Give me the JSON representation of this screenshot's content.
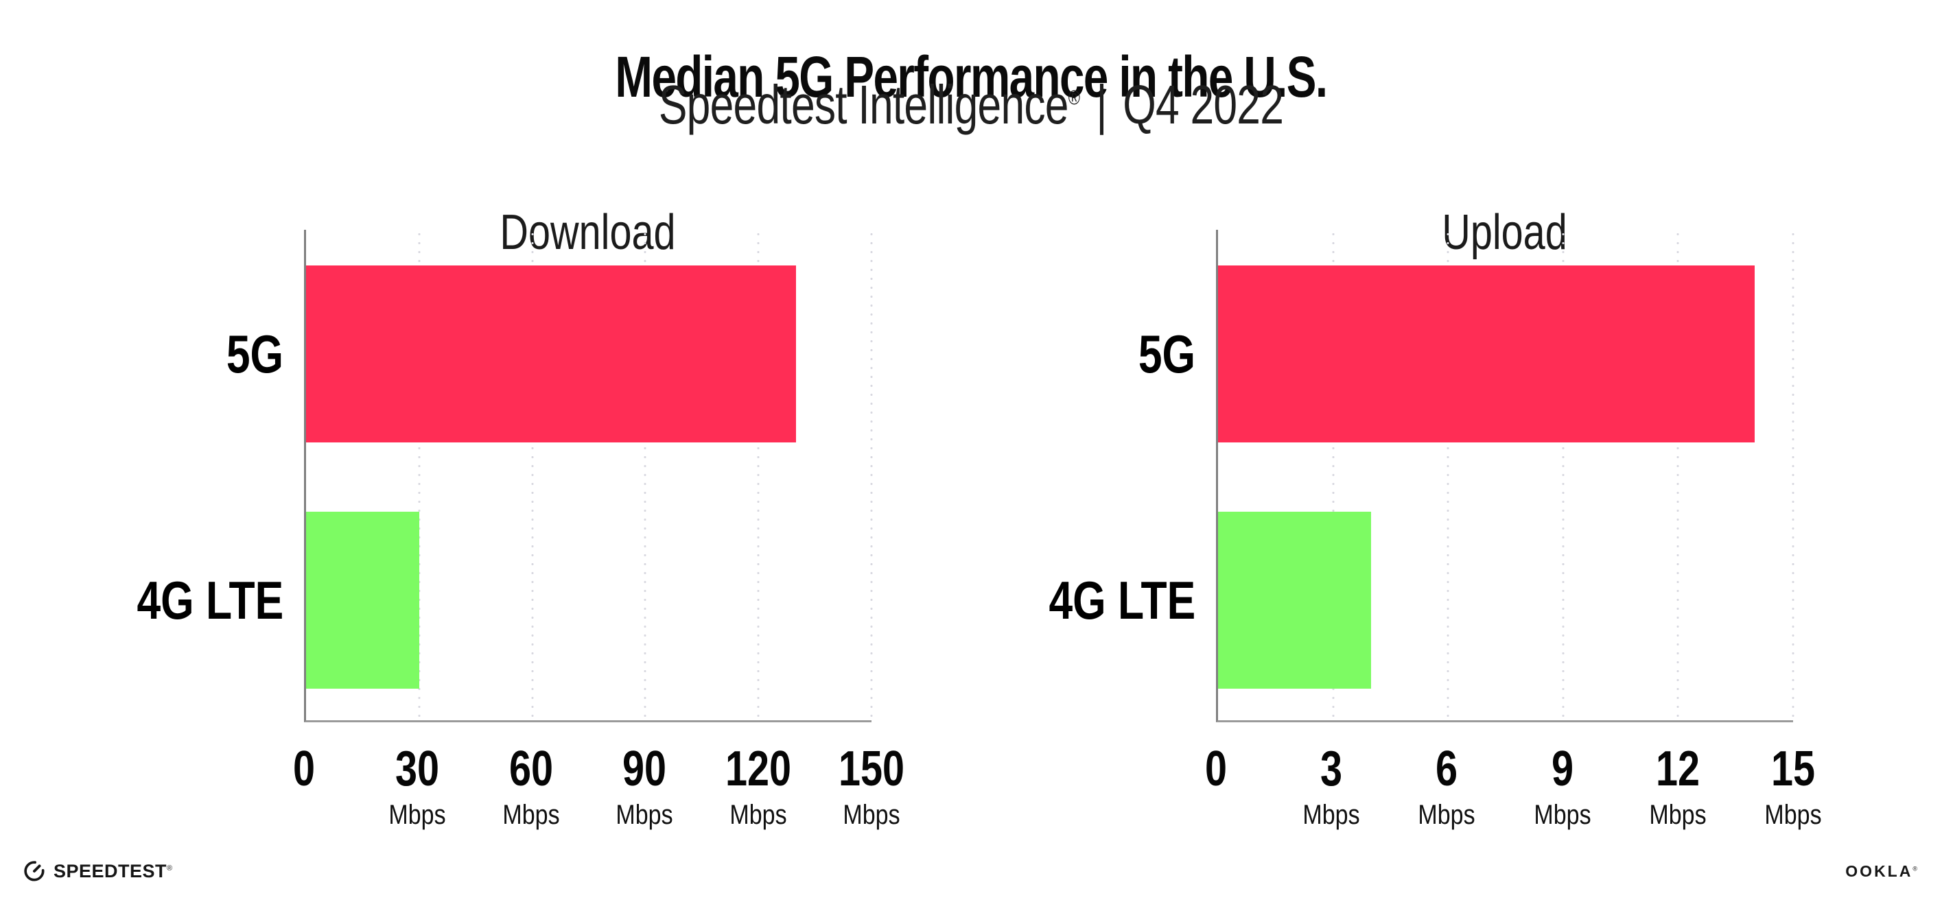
{
  "header": {
    "title": "Median 5G Performance in the U.S.",
    "subtitle_brand": "Speedtest Intelligence",
    "subtitle_reg": "®",
    "subtitle_sep": "|",
    "subtitle_period": "Q4 2022"
  },
  "chart_data": [
    {
      "type": "bar",
      "orientation": "horizontal",
      "title": "Download",
      "categories": [
        "5G",
        "4G LTE"
      ],
      "values": [
        130,
        30
      ],
      "unit": "Mbps",
      "xlim": [
        0,
        150
      ],
      "xticks": [
        0,
        30,
        60,
        90,
        120,
        150
      ],
      "grid": "vertical-dotted",
      "bar_colors": [
        "#FF2D55",
        "#7DFB63"
      ]
    },
    {
      "type": "bar",
      "orientation": "horizontal",
      "title": "Upload",
      "categories": [
        "5G",
        "4G LTE"
      ],
      "values": [
        14,
        4
      ],
      "unit": "Mbps",
      "xlim": [
        0,
        15
      ],
      "xticks": [
        0,
        3,
        6,
        9,
        12,
        15
      ],
      "grid": "vertical-dotted",
      "bar_colors": [
        "#FF2D55",
        "#7DFB63"
      ]
    }
  ],
  "footer": {
    "speedtest_label": "SPEEDTEST",
    "speedtest_mark": "®",
    "ookla_label": "OOKLA",
    "ookla_mark": "®"
  },
  "colors": {
    "bar_5g": "#FF2D55",
    "bar_4g_lte": "#7DFB63",
    "axis": "#8A8A8A",
    "grid_dot": "#D8D8E0",
    "text": "#0A0A0A"
  }
}
